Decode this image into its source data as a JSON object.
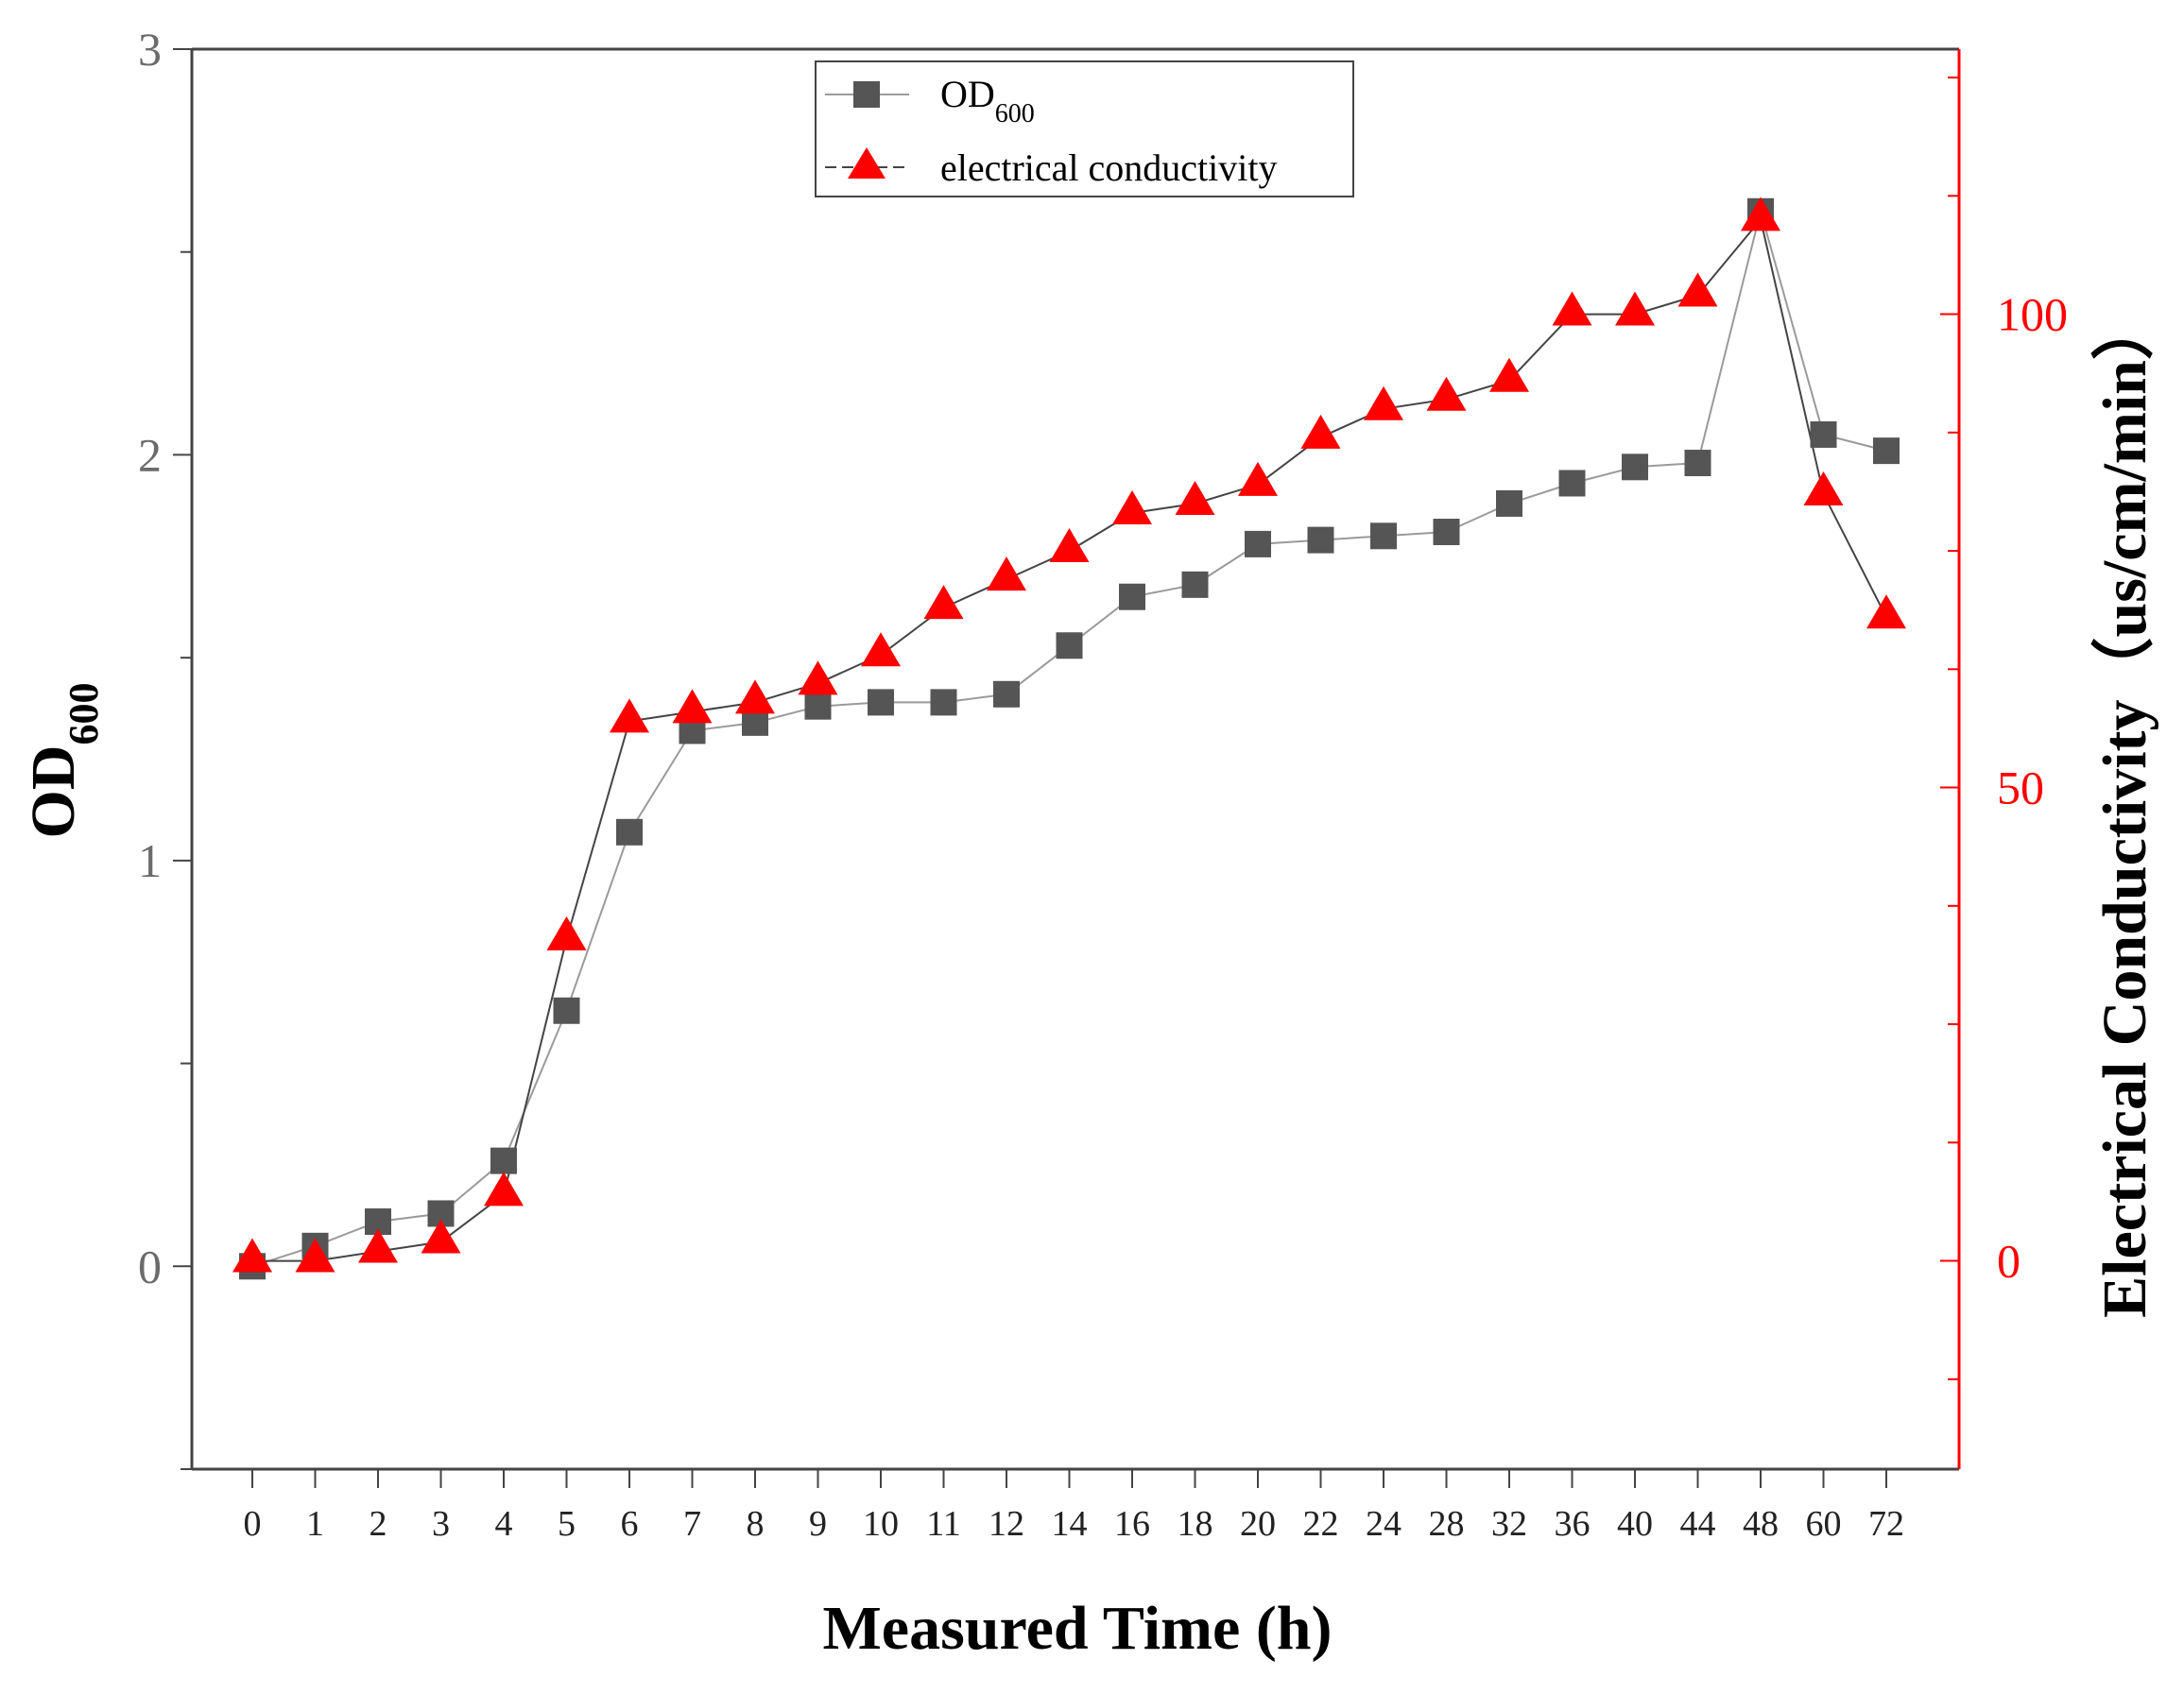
{
  "chart_data": {
    "type": "line",
    "xlabel": "Measured Time (h)",
    "ylabel_main": "OD",
    "ylabel_sub": "600",
    "y2label": "Electrical Conductivity（us/cm/min）",
    "categories": [
      "0",
      "1",
      "2",
      "3",
      "4",
      "5",
      "6",
      "7",
      "8",
      "9",
      "10",
      "11",
      "12",
      "14",
      "16",
      "18",
      "20",
      "22",
      "24",
      "28",
      "32",
      "36",
      "40",
      "44",
      "48",
      "60",
      "72"
    ],
    "ylim": [
      -0.5,
      3
    ],
    "y_ticks": [
      0,
      1,
      2,
      3
    ],
    "y2lim": [
      -22,
      128
    ],
    "y2_ticks": [
      0,
      50,
      100
    ],
    "series": [
      {
        "name": "OD",
        "name_sub": "600",
        "axis": "left",
        "marker": "square",
        "color": "#555555",
        "line_color": "#9a9a9a",
        "values": [
          0.0,
          0.05,
          0.11,
          0.13,
          0.26,
          0.63,
          1.07,
          1.32,
          1.34,
          1.38,
          1.39,
          1.39,
          1.41,
          1.53,
          1.65,
          1.68,
          1.78,
          1.79,
          1.8,
          1.81,
          1.88,
          1.93,
          1.97,
          1.98,
          2.6,
          2.05,
          2.01
        ]
      },
      {
        "name": "electrical conductivity",
        "axis": "right",
        "marker": "triangle",
        "color": "#ff0000",
        "line_color": "#444444",
        "values": [
          0,
          0,
          1,
          2,
          7,
          34,
          57,
          58,
          59,
          61,
          64,
          69,
          72,
          75,
          79,
          80,
          82,
          87,
          90,
          91,
          93,
          100,
          100,
          102,
          110,
          81,
          68
        ]
      }
    ],
    "legend_position": "top-center",
    "grid": false
  }
}
